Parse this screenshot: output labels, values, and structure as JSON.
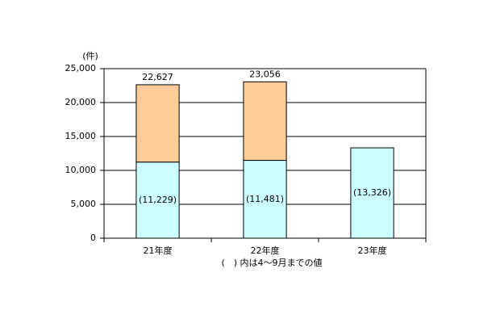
{
  "chart_data": {
    "type": "stacked_bar",
    "unit_label": "(件)",
    "note": "(　) 内は4～9月までの値",
    "categories": [
      "21年度",
      "22年度",
      "23年度"
    ],
    "series": [
      {
        "color": "#ccffff",
        "values": [
          11229,
          11481,
          13326
        ],
        "value_labels": [
          "(11,229)",
          "(11,481)",
          "(13,326)"
        ]
      },
      {
        "color": "#ffcc99",
        "values": [
          11398,
          11575,
          null
        ]
      }
    ],
    "totals": [
      22627,
      23056,
      null
    ],
    "total_labels": [
      "22,627",
      "23,056",
      null
    ],
    "ylim": [
      0,
      25000
    ],
    "yticks": [
      0,
      {
        "value": 5000,
        "label": "5,000"
      },
      {
        "value": 10000,
        "label": "10,000"
      },
      {
        "value": 15000,
        "label": "15,000"
      },
      {
        "value": 20000,
        "label": "20,000"
      },
      {
        "value": 25000,
        "label": "25,000"
      }
    ],
    "grid": true
  }
}
